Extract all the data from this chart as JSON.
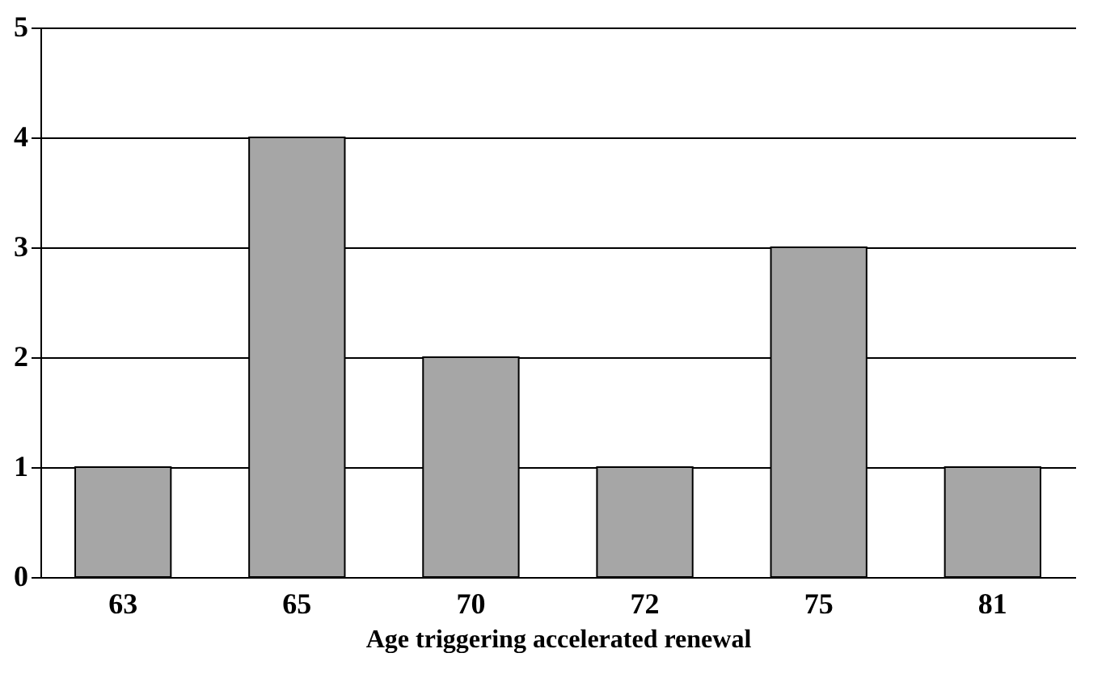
{
  "chart_data": {
    "type": "bar",
    "xlabel": "Age triggering accelerated renewal",
    "categories": [
      "63",
      "65",
      "70",
      "72",
      "75",
      "81"
    ],
    "values": [
      1,
      4,
      2,
      1,
      3,
      1
    ],
    "color": "#a6a6a6",
    "ylim": [
      0,
      5
    ],
    "yticks": [
      0,
      1,
      2,
      3,
      4,
      5
    ],
    "grid": "y"
  }
}
